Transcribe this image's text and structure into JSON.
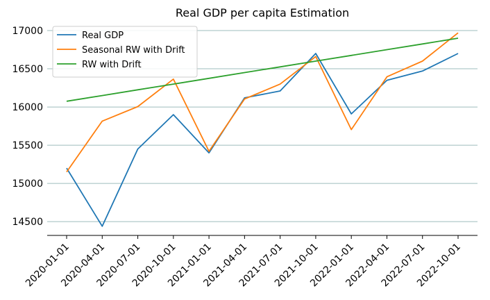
{
  "chart_data": {
    "type": "line",
    "title": "Real GDP per capita Estimation",
    "xlabel": "",
    "ylabel": "",
    "categories": [
      "2020-01-01",
      "2020-04-01",
      "2020-07-01",
      "2020-10-01",
      "2021-01-01",
      "2021-04-01",
      "2021-07-01",
      "2021-10-01",
      "2022-01-01",
      "2022-04-01",
      "2022-07-01",
      "2022-10-01"
    ],
    "y_ticks": [
      14500,
      15000,
      15500,
      16000,
      16500,
      17000
    ],
    "ylim": [
      14320,
      17100
    ],
    "grid": "horizontal",
    "legend_position": "top-left",
    "series": [
      {
        "name": "Real GDP",
        "color": "#1f77b4",
        "values": [
          15200,
          14440,
          15450,
          15900,
          15400,
          16120,
          16210,
          16700,
          15910,
          16350,
          16470,
          16700
        ]
      },
      {
        "name": "Seasonal RW with Drift",
        "color": "#ff7f0e",
        "values": [
          15150,
          15815,
          16005,
          16365,
          15420,
          16105,
          16300,
          16660,
          15705,
          16395,
          16600,
          16970
        ]
      },
      {
        "name": "RW with Drift",
        "color": "#2ca02c",
        "values": [
          16075,
          16150,
          16225,
          16300,
          16375,
          16450,
          16525,
          16600,
          16675,
          16750,
          16825,
          16900
        ]
      }
    ]
  }
}
